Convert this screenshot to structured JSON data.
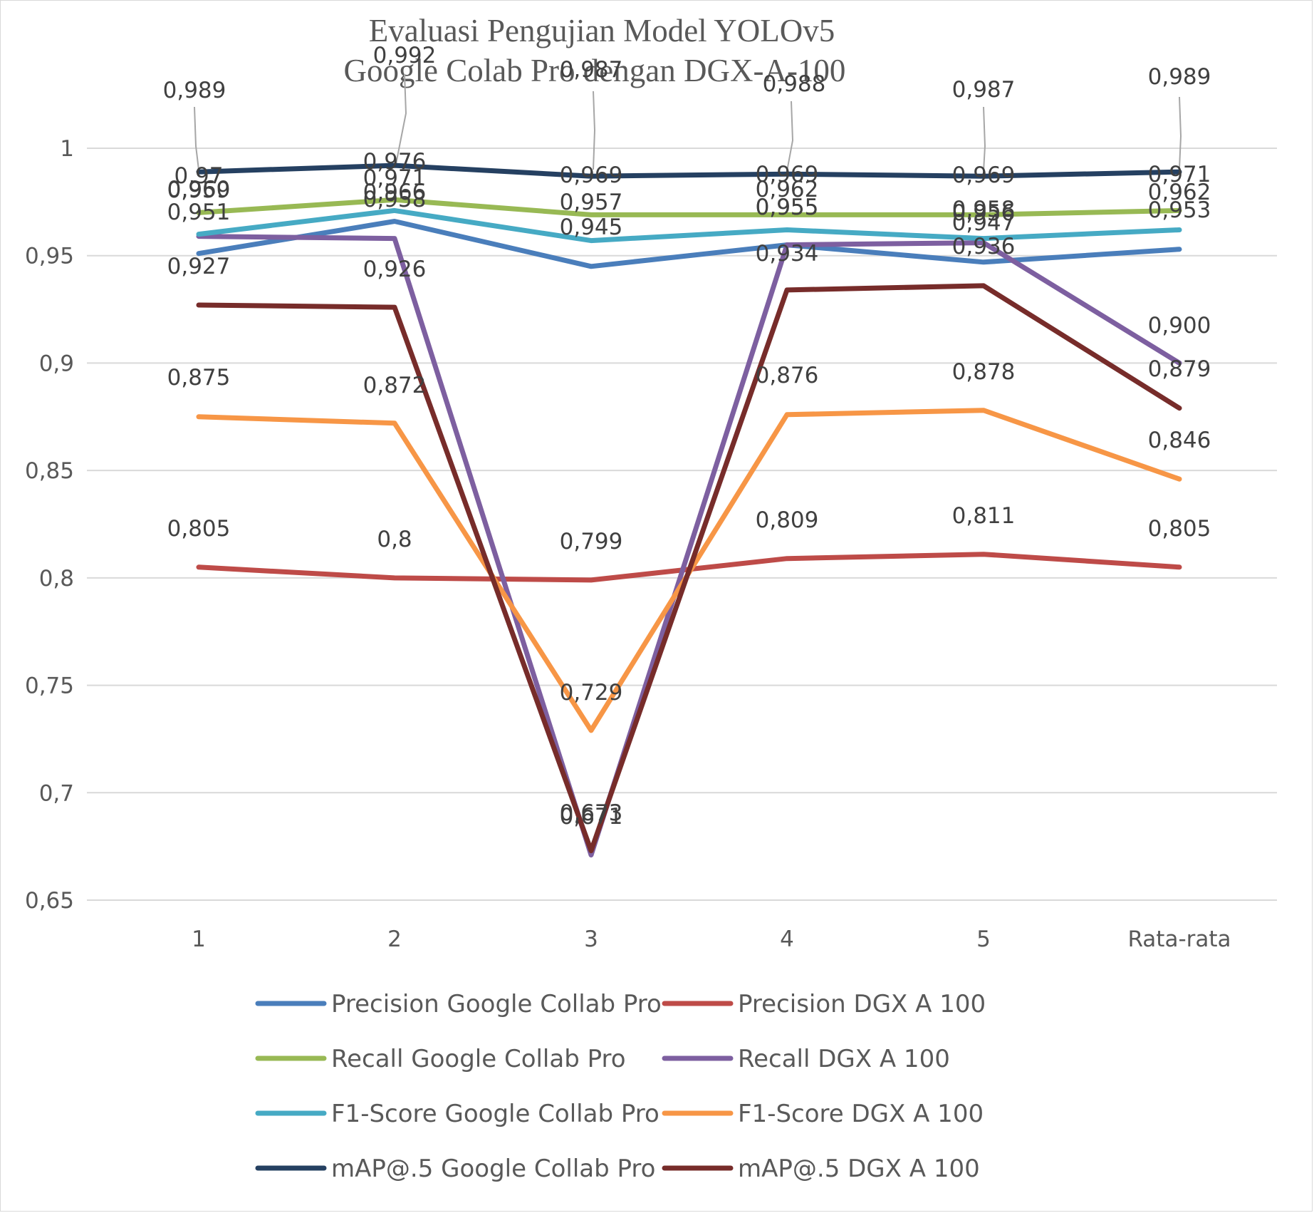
{
  "chart_data": {
    "type": "line",
    "title_lines": [
      "Evaluasi Pengujian Model YOLOv5",
      "Google Colab Pro dengan DGX-A-100"
    ],
    "categories": [
      "1",
      "2",
      "3",
      "4",
      "5",
      "Rata-rata"
    ],
    "ylim": [
      0.65,
      1.0
    ],
    "yticks": [
      {
        "value": 0.65,
        "label": "0,65"
      },
      {
        "value": 0.7,
        "label": "0,7"
      },
      {
        "value": 0.75,
        "label": "0,75"
      },
      {
        "value": 0.8,
        "label": "0,8"
      },
      {
        "value": 0.85,
        "label": "0,85"
      },
      {
        "value": 0.9,
        "label": "0,9"
      },
      {
        "value": 0.95,
        "label": "0,95"
      },
      {
        "value": 1.0,
        "label": "1"
      }
    ],
    "grid": true,
    "legend_position": "bottom",
    "series": [
      {
        "name": "Precision Google Collab Pro",
        "color": "#4a7ebb",
        "values": [
          0.951,
          0.966,
          0.945,
          0.955,
          0.947,
          0.953
        ],
        "labels": [
          "0,951",
          "0,966",
          "0,945",
          "0,955",
          "0,947",
          "0,953"
        ]
      },
      {
        "name": "Precision DGX A 100",
        "color": "#be4b48",
        "values": [
          0.805,
          0.8,
          0.799,
          0.809,
          0.811,
          0.805
        ],
        "labels": [
          "0,805",
          "0,8",
          "0,799",
          "0,809",
          "0,811",
          "0,805"
        ]
      },
      {
        "name": "Recall Google Collab Pro",
        "color": "#98b954",
        "values": [
          0.97,
          0.976,
          0.969,
          0.969,
          0.969,
          0.971
        ],
        "labels": [
          "0,97",
          "0,976",
          "0,969",
          "0,969",
          "0,969",
          "0,971"
        ]
      },
      {
        "name": "Recall DGX A 100",
        "color": "#7d5fa0",
        "values": [
          0.959,
          0.958,
          0.671,
          0.955,
          0.956,
          0.9
        ],
        "labels": [
          "0,959",
          "0,958",
          "0,671",
          "0,955",
          "0,956",
          "0,900"
        ]
      },
      {
        "name": "F1-Score Google Collab Pro",
        "color": "#46aac4",
        "values": [
          0.96,
          0.971,
          0.957,
          0.962,
          0.958,
          0.962
        ],
        "labels": [
          "0,960",
          "0,971",
          "0,957",
          "0,962",
          "0,958",
          "0,962"
        ]
      },
      {
        "name": "F1-Score DGX A 100",
        "color": "#f79646",
        "values": [
          0.875,
          0.872,
          0.729,
          0.876,
          0.878,
          0.846
        ],
        "labels": [
          "0,875",
          "0,872",
          "0,729",
          "0,876",
          "0,878",
          "0,846"
        ]
      },
      {
        "name": "mAP@.5 Google Collab Pro",
        "color": "#254061",
        "values": [
          0.989,
          0.992,
          0.987,
          0.988,
          0.987,
          0.989
        ],
        "labels": [
          "0,989",
          "0,992",
          "0,987",
          "0,988",
          "0,987",
          "0,989"
        ]
      },
      {
        "name": "mAP@.5 DGX A 100",
        "color": "#772c2a",
        "values": [
          0.927,
          0.926,
          0.673,
          0.934,
          0.936,
          0.879
        ],
        "labels": [
          "0,927",
          "0,926",
          "0,673",
          "0,934",
          "0,936",
          "0,879"
        ]
      }
    ]
  }
}
